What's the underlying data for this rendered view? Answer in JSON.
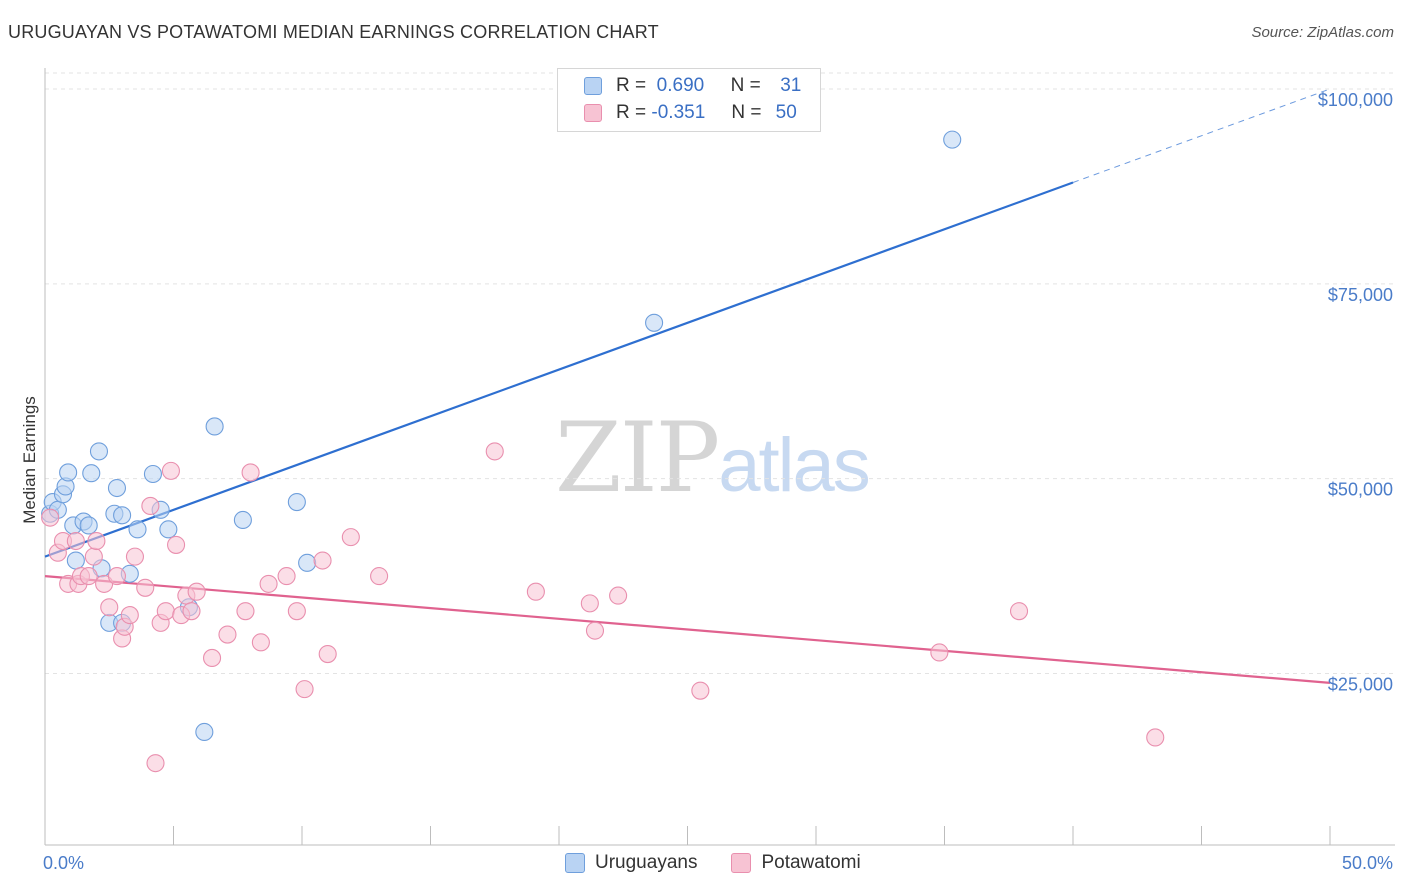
{
  "header": {
    "title": "URUGUAYAN VS POTAWATOMI MEDIAN EARNINGS CORRELATION CHART",
    "source": "Source: ZipAtlas.com"
  },
  "watermark": {
    "zip": "ZIP",
    "atlas": "atlas"
  },
  "legend": {
    "rows": [
      {
        "r_label": "R =",
        "r_value": "0.690",
        "n_label": "N =",
        "n_value": "31"
      },
      {
        "r_label": "R =",
        "r_value": "-0.351",
        "n_label": "N =",
        "n_value": "50"
      }
    ]
  },
  "bottom_legend": {
    "series_a": "Uruguayans",
    "series_b": "Potawatomi"
  },
  "colors": {
    "blue_fill": "#b9d3f3",
    "blue_stroke": "#6f9fdc",
    "blue_line": "#2e6fd0",
    "pink_fill": "#f7c3d3",
    "pink_stroke": "#e98fae",
    "pink_line": "#e0628f",
    "grid": "#e3e3e3",
    "axis_text": "#4a7cc9"
  },
  "chart_data": {
    "type": "scatter",
    "title": "URUGUAYAN VS POTAWATOMI MEDIAN EARNINGS CORRELATION CHART",
    "xlabel": "",
    "ylabel": "Median Earnings",
    "xlim": [
      0,
      50
    ],
    "ylim": [
      3000,
      105000
    ],
    "x_tick_labels": [
      "0.0%",
      "50.0%"
    ],
    "y_ticks": [
      25000,
      50000,
      75000,
      100000
    ],
    "y_tick_labels": [
      "$25,000",
      "$50,000",
      "$75,000",
      "$100,000"
    ],
    "grid": true,
    "series": [
      {
        "name": "Uruguayans",
        "points": [
          [
            0.2,
            45500
          ],
          [
            0.3,
            47000
          ],
          [
            0.5,
            46000
          ],
          [
            0.7,
            48000
          ],
          [
            0.8,
            49000
          ],
          [
            0.9,
            50800
          ],
          [
            1.1,
            44000
          ],
          [
            1.2,
            39500
          ],
          [
            1.5,
            44500
          ],
          [
            1.7,
            44000
          ],
          [
            1.8,
            50700
          ],
          [
            2.1,
            53500
          ],
          [
            2.2,
            38500
          ],
          [
            2.5,
            31500
          ],
          [
            2.7,
            45500
          ],
          [
            2.8,
            48800
          ],
          [
            3.0,
            45300
          ],
          [
            3.3,
            37800
          ],
          [
            3.6,
            43500
          ],
          [
            4.2,
            50600
          ],
          [
            4.5,
            46000
          ],
          [
            4.8,
            43500
          ],
          [
            5.6,
            33500
          ],
          [
            6.2,
            17500
          ],
          [
            6.6,
            56700
          ],
          [
            7.7,
            44700
          ],
          [
            9.8,
            47000
          ],
          [
            10.2,
            39200
          ],
          [
            23.7,
            70000
          ],
          [
            35.3,
            93500
          ],
          [
            3.0,
            31500
          ]
        ],
        "trend": {
          "x": [
            0.0,
            40.0
          ],
          "y": [
            40000,
            88000
          ],
          "dashed_to": [
            50.0,
            100000
          ]
        }
      },
      {
        "name": "Potawatomi",
        "points": [
          [
            0.2,
            45000
          ],
          [
            0.5,
            40500
          ],
          [
            0.7,
            42000
          ],
          [
            0.9,
            36500
          ],
          [
            1.2,
            42000
          ],
          [
            1.3,
            36500
          ],
          [
            1.4,
            37500
          ],
          [
            1.7,
            37500
          ],
          [
            1.9,
            40000
          ],
          [
            2.0,
            42000
          ],
          [
            2.3,
            36500
          ],
          [
            2.5,
            33500
          ],
          [
            2.8,
            37500
          ],
          [
            3.0,
            29500
          ],
          [
            3.1,
            31000
          ],
          [
            3.3,
            32500
          ],
          [
            3.5,
            40000
          ],
          [
            3.9,
            36000
          ],
          [
            4.1,
            46500
          ],
          [
            4.3,
            13500
          ],
          [
            4.5,
            31500
          ],
          [
            4.7,
            33000
          ],
          [
            4.9,
            51000
          ],
          [
            5.1,
            41500
          ],
          [
            5.3,
            32500
          ],
          [
            5.5,
            35000
          ],
          [
            5.7,
            33000
          ],
          [
            5.9,
            35500
          ],
          [
            6.5,
            27000
          ],
          [
            7.1,
            30000
          ],
          [
            7.8,
            33000
          ],
          [
            8.0,
            50800
          ],
          [
            8.4,
            29000
          ],
          [
            8.7,
            36500
          ],
          [
            9.4,
            37500
          ],
          [
            9.8,
            33000
          ],
          [
            10.1,
            23000
          ],
          [
            10.8,
            39500
          ],
          [
            11.0,
            27500
          ],
          [
            11.9,
            42500
          ],
          [
            13.0,
            37500
          ],
          [
            17.5,
            53500
          ],
          [
            19.1,
            35500
          ],
          [
            21.2,
            34000
          ],
          [
            21.4,
            30500
          ],
          [
            22.3,
            35000
          ],
          [
            25.5,
            22800
          ],
          [
            34.8,
            27700
          ],
          [
            37.9,
            33000
          ],
          [
            43.2,
            16800
          ]
        ],
        "trend": {
          "x": [
            0.0,
            50.0
          ],
          "y": [
            37500,
            23800
          ]
        }
      }
    ]
  }
}
